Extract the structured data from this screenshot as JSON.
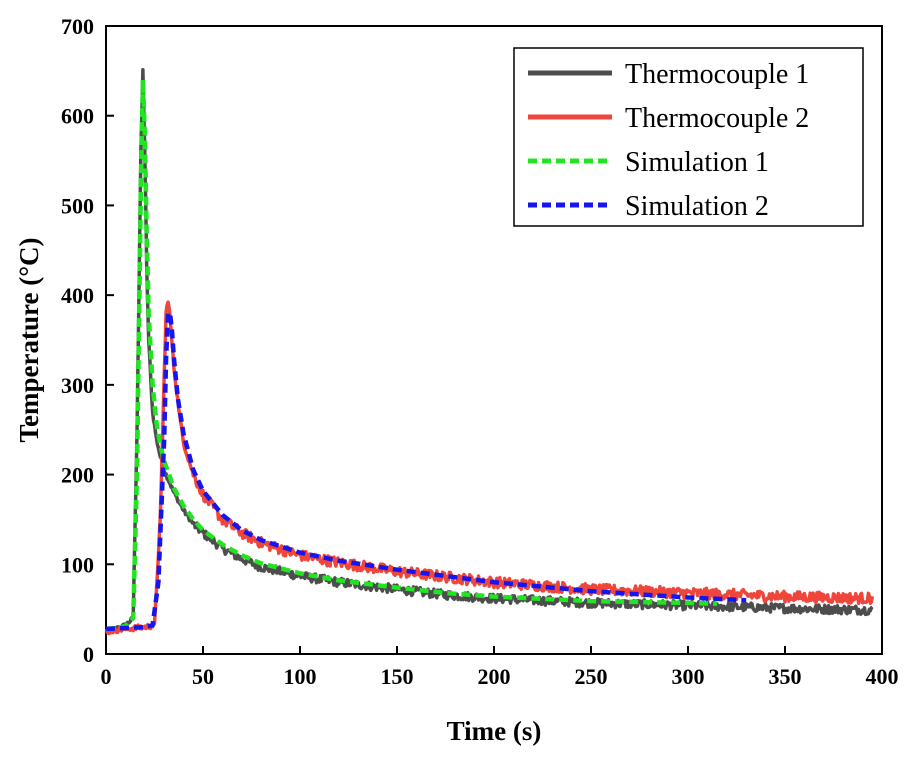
{
  "chart_data": {
    "type": "line",
    "title": "",
    "xlabel": "Time (s)",
    "ylabel": "Temperature (°C)",
    "xlim": [
      0,
      400
    ],
    "ylim": [
      0,
      700
    ],
    "x_ticks": [
      0,
      50,
      100,
      150,
      200,
      250,
      300,
      350,
      400
    ],
    "y_ticks": [
      0,
      100,
      200,
      300,
      400,
      500,
      600,
      700
    ],
    "grid": false,
    "legend_position": "top-right",
    "series": [
      {
        "name": "Thermocouple 1",
        "color": "#4d4d4d",
        "style": "solid",
        "noise": 5,
        "x": [
          0,
          5,
          10,
          14,
          16,
          18,
          19,
          20,
          21,
          22,
          24,
          26,
          28,
          30,
          35,
          40,
          45,
          50,
          60,
          70,
          80,
          100,
          120,
          150,
          175,
          200,
          250,
          300,
          350,
          395
        ],
        "y": [
          25,
          28,
          32,
          40,
          250,
          560,
          650,
          560,
          430,
          350,
          270,
          240,
          220,
          205,
          180,
          160,
          145,
          135,
          118,
          106,
          97,
          87,
          80,
          72,
          66,
          62,
          57,
          54,
          51,
          49
        ]
      },
      {
        "name": "Thermocouple 2",
        "color": "#f0453a",
        "style": "solid",
        "noise": 6,
        "x": [
          0,
          10,
          20,
          25,
          28,
          30,
          31,
          32,
          33,
          35,
          38,
          40,
          45,
          50,
          60,
          70,
          80,
          100,
          120,
          150,
          200,
          250,
          300,
          350,
          395
        ],
        "y": [
          25,
          28,
          30,
          32,
          150,
          310,
          380,
          395,
          375,
          320,
          265,
          235,
          200,
          178,
          150,
          135,
          124,
          110,
          102,
          92,
          80,
          72,
          68,
          64,
          62
        ]
      },
      {
        "name": "Simulation 1",
        "color": "#22e422",
        "style": "dashed",
        "noise": 0,
        "x": [
          0,
          5,
          10,
          14,
          16,
          18,
          19,
          20,
          21,
          22,
          24,
          26,
          28,
          30,
          35,
          40,
          45,
          50,
          60,
          70,
          80,
          100,
          120,
          150,
          175,
          200,
          250,
          300,
          315
        ],
        "y": [
          28,
          29,
          31,
          40,
          200,
          520,
          640,
          580,
          470,
          380,
          300,
          258,
          233,
          215,
          185,
          165,
          150,
          138,
          122,
          110,
          101,
          90,
          82,
          74,
          68,
          64,
          59,
          57,
          56
        ]
      },
      {
        "name": "Simulation 2",
        "color": "#1515ee",
        "style": "dashed",
        "noise": 0,
        "x": [
          0,
          10,
          20,
          24,
          27,
          30,
          31,
          32,
          33,
          34,
          35,
          37,
          40,
          45,
          50,
          60,
          70,
          80,
          100,
          120,
          150,
          200,
          250,
          300,
          330
        ],
        "y": [
          28,
          29,
          30,
          32,
          80,
          240,
          330,
          380,
          380,
          360,
          330,
          285,
          245,
          205,
          182,
          155,
          138,
          127,
          113,
          104,
          94,
          80,
          70,
          63,
          60
        ]
      }
    ]
  }
}
